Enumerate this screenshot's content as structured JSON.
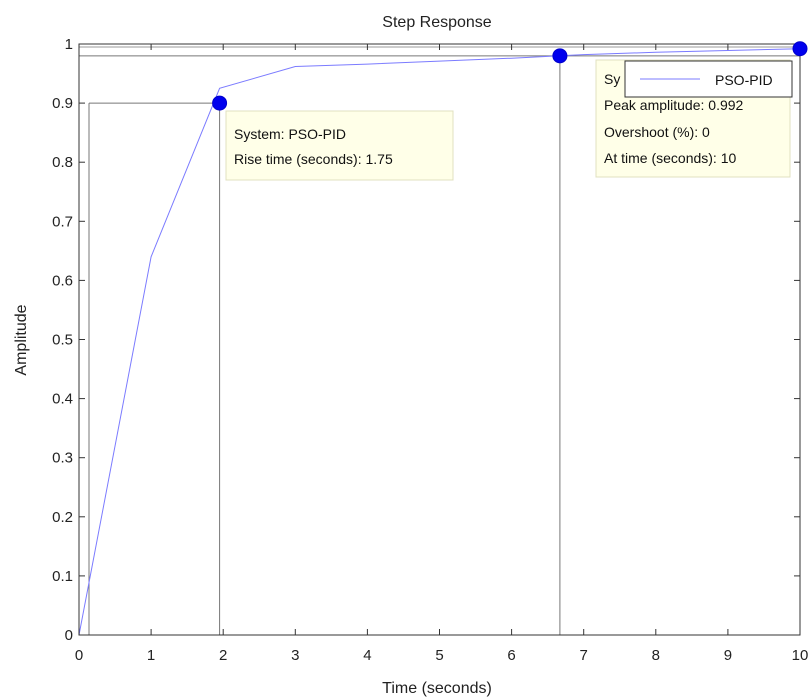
{
  "chart_data": {
    "type": "line",
    "title": "Step Response",
    "xlabel": "Time (seconds)",
    "ylabel": "Amplitude",
    "xlim": [
      0,
      10
    ],
    "ylim": [
      0,
      1
    ],
    "xticks": [
      "0",
      "1",
      "2",
      "3",
      "4",
      "5",
      "6",
      "7",
      "8",
      "9",
      "10"
    ],
    "yticks": [
      "0",
      "0.1",
      "0.2",
      "0.3",
      "0.4",
      "0.5",
      "0.6",
      "0.7",
      "0.8",
      "0.9",
      "1"
    ],
    "grid": false,
    "legend": {
      "position": "top-right",
      "entries": [
        "PSO-PID"
      ]
    },
    "series": [
      {
        "name": "PSO-PID",
        "color": "#7b7bff",
        "x": [
          0,
          1,
          1.95,
          3,
          4,
          5,
          6,
          6.67,
          7,
          8,
          9,
          10
        ],
        "y": [
          0,
          0.64,
          0.925,
          0.962,
          0.966,
          0.971,
          0.976,
          0.98,
          0.982,
          0.986,
          0.989,
          0.992
        ]
      }
    ],
    "markers": [
      {
        "name": "rise-time",
        "x": 1.95,
        "y": 0.9
      },
      {
        "name": "settling",
        "x": 6.67,
        "y": 0.98
      },
      {
        "name": "peak",
        "x": 10,
        "y": 0.992
      }
    ],
    "annotations": [
      {
        "name": "rise-time-datatip",
        "lines": [
          "System: PSO-PID",
          "Rise time (seconds): 1.75"
        ]
      },
      {
        "name": "peak-datatip",
        "lines": [
          "Sy",
          "Peak amplitude: 0.992",
          "Overshoot (%): 0",
          "At time (seconds): 10"
        ]
      }
    ]
  }
}
